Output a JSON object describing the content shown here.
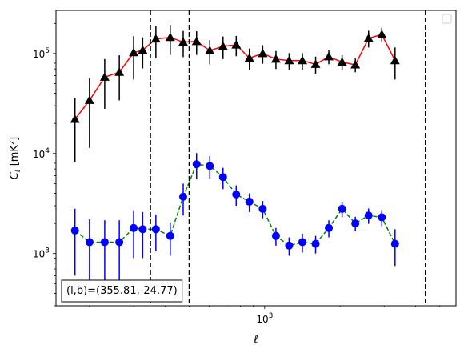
{
  "chart_data": {
    "type": "line",
    "title": "",
    "xlabel": "ℓ",
    "ylabel": "C_ℓ [mK²]",
    "x_scale": "log",
    "y_scale": "log",
    "xlim": [
      147,
      5800
    ],
    "ylim": [
      300,
      270000
    ],
    "x_ticks": [
      {
        "value": 1000,
        "base": "10",
        "exp": "3"
      }
    ],
    "y_ticks": [
      {
        "value": 1000,
        "base": "10",
        "exp": "3"
      },
      {
        "value": 10000,
        "base": "10",
        "exp": "4"
      },
      {
        "value": 100000,
        "base": "10",
        "exp": "5"
      }
    ],
    "grid": false,
    "legend": "top-right (empty)",
    "vlines": [
      350,
      500,
      4380
    ],
    "annotation": "(l,b)=(355.81,-24.77)",
    "series": [
      {
        "marker": "triangle",
        "color": "#000000",
        "line_color": "#ff0000",
        "line_style": "solid",
        "x": [
          175,
          200,
          230,
          263,
          300,
          326,
          368,
          420,
          473,
          535,
          604,
          682,
          770,
          869,
          982,
          1109,
          1252,
          1414,
          1597,
          1803,
          2037,
          2300,
          2598,
          2934,
          3313,
          3742,
          4226,
          4772,
          5390,
          6088
        ],
        "y": [
          22000,
          34000,
          58000,
          65000,
          102000,
          108000,
          140000,
          145000,
          130000,
          132000,
          107000,
          118000,
          122000,
          90000,
          100000,
          88000,
          85000,
          85000,
          78000,
          93000,
          82000,
          77000,
          142000,
          155000,
          85000,
          0,
          0,
          0,
          0,
          0
        ],
        "y_err_low": [
          13800,
          22600,
          30000,
          31000,
          47000,
          37000,
          50000,
          48000,
          38000,
          35000,
          29000,
          30000,
          28000,
          22000,
          21000,
          18000,
          16000,
          16000,
          15000,
          15000,
          14000,
          12000,
          27000,
          26000,
          30000,
          0,
          0,
          0,
          0,
          0
        ],
        "y_err_high": [
          13800,
          22600,
          30000,
          31000,
          47000,
          37000,
          50000,
          48000,
          38000,
          35000,
          29000,
          30000,
          28000,
          22000,
          21000,
          18000,
          16000,
          16000,
          15000,
          15000,
          14000,
          12000,
          27000,
          26000,
          30000,
          0,
          0,
          0,
          0,
          0
        ]
      },
      {
        "marker": "circle",
        "color": "#0000ff",
        "line_color": "#008000",
        "line_style": "dashed",
        "x": [
          175,
          200,
          230,
          263,
          300,
          326,
          368,
          420,
          473,
          535,
          604,
          682,
          770,
          869,
          982,
          1109,
          1252,
          1414,
          1597,
          1803,
          2037,
          2300,
          2598,
          2934,
          3313,
          3742,
          4226,
          4772,
          5390,
          6088
        ],
        "y": [
          1700,
          1300,
          1300,
          1300,
          1800,
          1750,
          1750,
          1500,
          3700,
          7800,
          7500,
          5800,
          3900,
          3300,
          2800,
          1500,
          1200,
          1300,
          1250,
          1800,
          2800,
          2000,
          2400,
          2300,
          1250,
          0,
          0,
          0,
          0,
          0
        ],
        "y_err_low": [
          1100,
          900,
          850,
          850,
          900,
          850,
          700,
          550,
          1300,
          2300,
          1900,
          1400,
          900,
          700,
          550,
          300,
          250,
          280,
          250,
          350,
          500,
          330,
          420,
          420,
          500,
          0,
          0,
          0,
          0,
          0
        ],
        "y_err_high": [
          1100,
          900,
          850,
          850,
          900,
          850,
          700,
          550,
          1300,
          2300,
          1900,
          1400,
          900,
          700,
          550,
          300,
          250,
          280,
          250,
          350,
          500,
          330,
          420,
          420,
          500,
          0,
          0,
          0,
          0,
          0
        ]
      }
    ]
  }
}
